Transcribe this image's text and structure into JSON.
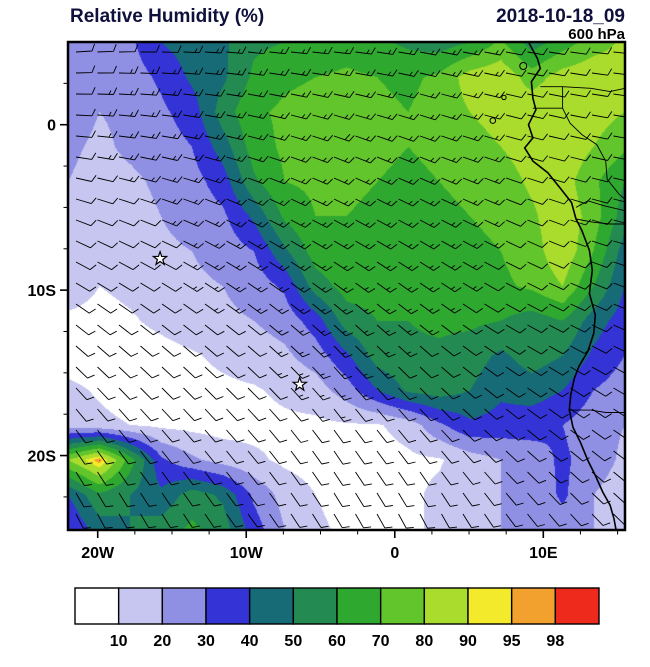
{
  "header": {
    "title": "Relative Humidity (%)",
    "datetime": "2018-10-18_09",
    "level": "600 hPa"
  },
  "axes": {
    "x_ticks": [
      {
        "lon": -20,
        "label": "20W"
      },
      {
        "lon": -10,
        "label": "10W"
      },
      {
        "lon": 0,
        "label": "0"
      },
      {
        "lon": 10,
        "label": "10E"
      }
    ],
    "y_ticks": [
      {
        "lat": 0,
        "label": "0"
      },
      {
        "lat": -10,
        "label": "10S"
      },
      {
        "lat": -20,
        "label": "20S"
      }
    ]
  },
  "colorbar": {
    "labels": [
      "10",
      "20",
      "30",
      "40",
      "50",
      "60",
      "70",
      "80",
      "90",
      "95",
      "98"
    ]
  },
  "chart_data": {
    "type": "heatmap",
    "title": "Relative Humidity (%)",
    "valid_time": "2018-10-18_09",
    "pressure_level": "600 hPa",
    "units": "%",
    "lon_range": [
      -22,
      15.5
    ],
    "lat_range": [
      -24.5,
      5
    ],
    "levels": [
      10,
      20,
      30,
      40,
      50,
      60,
      70,
      80,
      90,
      95,
      98
    ],
    "palette": [
      "#FFFFFF",
      "#C6C6F0",
      "#8F8FE4",
      "#3333D6",
      "#176B77",
      "#238B52",
      "#2FA82F",
      "#63C52C",
      "#A9DC2D",
      "#F2EA2A",
      "#F2A12E",
      "#EE2A1D"
    ],
    "rh_grid": {
      "lon_points": [
        -22.0,
        -19.92,
        -17.83,
        -15.75,
        -13.67,
        -11.58,
        -9.5,
        -7.42,
        -5.33,
        -3.25,
        -1.17,
        0.92,
        3.0,
        5.08,
        7.17,
        9.25,
        11.33,
        13.42,
        15.5
      ],
      "lat_points": [
        5.0,
        2.89,
        0.79,
        -1.32,
        -3.43,
        -5.54,
        -7.64,
        -9.75,
        -11.86,
        -13.96,
        -16.07,
        -18.18,
        -20.29,
        -22.39,
        -24.5
      ],
      "values_pct": [
        [
          25,
          25,
          28,
          40,
          45,
          48,
          58,
          60,
          62,
          65,
          62,
          58,
          55,
          60,
          72,
          55,
          65,
          75,
          82
        ],
        [
          25,
          22,
          25,
          32,
          42,
          48,
          62,
          68,
          70,
          72,
          70,
          68,
          72,
          85,
          88,
          75,
          85,
          88,
          85
        ],
        [
          25,
          20,
          22,
          28,
          35,
          55,
          68,
          72,
          74,
          75,
          72,
          70,
          74,
          80,
          85,
          88,
          90,
          85,
          80
        ],
        [
          22,
          18,
          22,
          25,
          30,
          45,
          65,
          72,
          75,
          75,
          72,
          70,
          72,
          75,
          80,
          85,
          88,
          80,
          72
        ],
        [
          20,
          16,
          18,
          22,
          26,
          35,
          58,
          70,
          72,
          72,
          70,
          68,
          70,
          72,
          75,
          82,
          85,
          72,
          60
        ],
        [
          18,
          14,
          16,
          20,
          24,
          28,
          42,
          62,
          70,
          70,
          68,
          66,
          68,
          70,
          72,
          78,
          88,
          75,
          55
        ],
        [
          16,
          12,
          14,
          18,
          20,
          24,
          30,
          48,
          65,
          68,
          66,
          64,
          66,
          68,
          70,
          75,
          88,
          70,
          45
        ],
        [
          15,
          10,
          12,
          15,
          18,
          20,
          24,
          32,
          55,
          64,
          64,
          62,
          64,
          66,
          68,
          72,
          80,
          60,
          40
        ],
        [
          8,
          7,
          9,
          12,
          15,
          18,
          20,
          24,
          35,
          55,
          60,
          60,
          62,
          62,
          60,
          55,
          60,
          45,
          35
        ],
        [
          6,
          5,
          6,
          7,
          9,
          12,
          15,
          18,
          25,
          38,
          55,
          58,
          58,
          55,
          48,
          55,
          50,
          38,
          30
        ],
        [
          12,
          9,
          6,
          6,
          7,
          8,
          9,
          12,
          15,
          25,
          40,
          52,
          55,
          50,
          42,
          45,
          40,
          30,
          25
        ],
        [
          14,
          12,
          10,
          8,
          7,
          6,
          7,
          8,
          8,
          9,
          9,
          14,
          28,
          38,
          36,
          34,
          30,
          24,
          20
        ],
        [
          80,
          99,
          65,
          32,
          22,
          16,
          12,
          8,
          6,
          5,
          6,
          8,
          9,
          15,
          20,
          25,
          32,
          25,
          18
        ],
        [
          40,
          58,
          50,
          42,
          55,
          48,
          28,
          16,
          10,
          6,
          5,
          8,
          12,
          18,
          20,
          22,
          32,
          20,
          15
        ],
        [
          30,
          45,
          50,
          55,
          62,
          55,
          35,
          20,
          12,
          8,
          6,
          8,
          12,
          16,
          20,
          22,
          25,
          20,
          15
        ]
      ]
    },
    "wind": {
      "overlay": "wind barbs",
      "lon_points": [
        -22,
        -16,
        -10,
        -4,
        2,
        8,
        15.5
      ],
      "lat_points": [
        5,
        -1,
        -7,
        -13,
        -19,
        -24.5
      ],
      "direction_from_deg": [
        [
          85,
          90,
          95,
          95,
          100,
          100,
          95
        ],
        [
          95,
          100,
          105,
          110,
          110,
          105,
          100
        ],
        [
          115,
          115,
          120,
          120,
          120,
          115,
          105
        ],
        [
          130,
          130,
          130,
          135,
          130,
          120,
          115
        ],
        [
          145,
          140,
          140,
          145,
          140,
          130,
          125
        ],
        [
          155,
          150,
          145,
          150,
          155,
          145,
          135
        ]
      ],
      "speed_kt": [
        [
          12,
          12,
          15,
          15,
          15,
          12,
          10
        ],
        [
          12,
          15,
          15,
          18,
          15,
          12,
          10
        ],
        [
          10,
          12,
          15,
          15,
          15,
          12,
          10
        ],
        [
          10,
          12,
          12,
          15,
          12,
          10,
          8
        ],
        [
          8,
          10,
          12,
          12,
          10,
          10,
          8
        ],
        [
          8,
          10,
          10,
          12,
          10,
          8,
          8
        ]
      ]
    },
    "markers": [
      {
        "type": "star",
        "lon": -15.8,
        "lat": -8.1
      },
      {
        "type": "star",
        "lon": -6.4,
        "lat": -15.7
      }
    ],
    "map": {
      "coastline": [
        [
          9.0,
          5.0
        ],
        [
          9.6,
          4.0
        ],
        [
          9.8,
          3.4
        ],
        [
          9.2,
          2.6
        ],
        [
          9.3,
          1.6
        ],
        [
          9.5,
          0.9
        ],
        [
          9.0,
          0.0
        ],
        [
          9.3,
          -0.8
        ],
        [
          8.75,
          -1.4
        ],
        [
          9.3,
          -2.2
        ],
        [
          10.3,
          -2.9
        ],
        [
          11.2,
          -3.9
        ],
        [
          11.9,
          -4.7
        ],
        [
          12.2,
          -5.7
        ],
        [
          12.6,
          -6.4
        ],
        [
          13.1,
          -7.6
        ],
        [
          13.3,
          -8.8
        ],
        [
          13.1,
          -10.2
        ],
        [
          13.5,
          -11.5
        ],
        [
          13.4,
          -12.6
        ],
        [
          13.0,
          -13.7
        ],
        [
          12.4,
          -14.6
        ],
        [
          12.1,
          -15.3
        ],
        [
          11.85,
          -16.3
        ],
        [
          11.75,
          -17.25
        ],
        [
          12.0,
          -18.3
        ],
        [
          12.5,
          -19.2
        ],
        [
          13.0,
          -20.3
        ],
        [
          13.5,
          -21.2
        ],
        [
          14.0,
          -22.2
        ],
        [
          14.5,
          -23.0
        ],
        [
          14.75,
          -23.8
        ],
        [
          14.9,
          -24.5
        ]
      ],
      "borders": [
        [
          [
            9.8,
            2.3
          ],
          [
            11.3,
            2.3
          ],
          [
            11.3,
            1.0
          ],
          [
            9.3,
            1.0
          ]
        ],
        [
          [
            11.3,
            2.3
          ],
          [
            13.2,
            2.2
          ],
          [
            14.5,
            2.0
          ],
          [
            15.5,
            2.2
          ]
        ],
        [
          [
            11.3,
            1.0
          ],
          [
            11.8,
            0.1
          ],
          [
            12.6,
            -0.6
          ],
          [
            13.6,
            -1.2
          ],
          [
            14.2,
            -2.2
          ],
          [
            14.3,
            -3.3
          ],
          [
            15.1,
            -4.2
          ],
          [
            15.5,
            -4.5
          ]
        ],
        [
          [
            12.2,
            -5.0
          ],
          [
            13.0,
            -4.6
          ],
          [
            14.1,
            -4.9
          ],
          [
            15.5,
            -5.2
          ]
        ],
        [
          [
            12.2,
            -5.7
          ],
          [
            13.4,
            -5.9
          ],
          [
            14.5,
            -6.0
          ],
          [
            15.5,
            -6.0
          ]
        ],
        [
          [
            11.75,
            -17.25
          ],
          [
            13.2,
            -17.25
          ],
          [
            14.2,
            -17.4
          ],
          [
            15.5,
            -17.4
          ]
        ]
      ],
      "islands": [
        {
          "lon": 8.65,
          "lat": 3.55,
          "r": 3.5
        },
        {
          "lon": 7.35,
          "lat": 1.65,
          "r": 2.2
        },
        {
          "lon": 6.6,
          "lat": 0.25,
          "r": 2.8
        }
      ]
    }
  }
}
